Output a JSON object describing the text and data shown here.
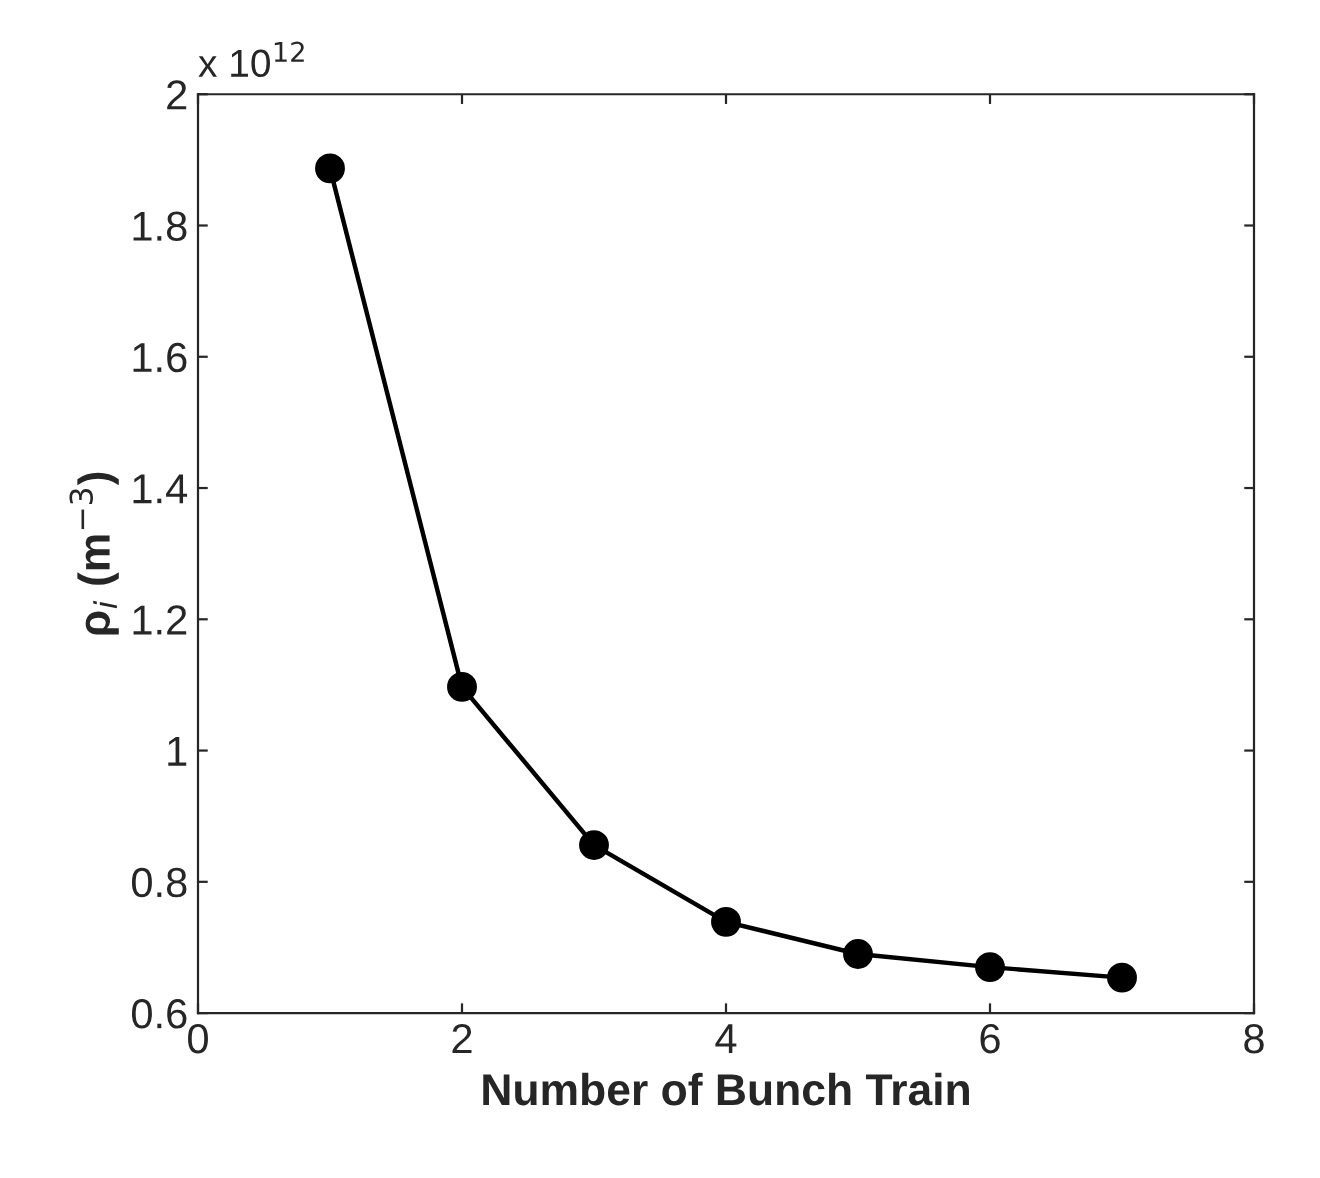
{
  "chart_data": {
    "type": "line",
    "xlabel": "Number of Bunch Train",
    "ylabel": "ρ$_{i}$ (m$^{−3}$)",
    "annotations": [
      "x 10$^{12}$"
    ],
    "x": [
      1,
      2,
      3,
      4,
      5,
      6,
      7
    ],
    "series": [
      {
        "color": "#000000",
        "values": [
          1.887,
          1.097,
          0.856,
          0.739,
          0.69,
          0.67,
          0.654
        ]
      }
    ],
    "xlim": [
      0,
      8
    ],
    "xticks": [
      0,
      2,
      4,
      6,
      8
    ],
    "ylim": [
      0.6,
      2
    ],
    "yticks": [
      0.6,
      0.8,
      1,
      1.2,
      1.4,
      1.6,
      1.8,
      2
    ],
    "marker": "circle",
    "line_style": "solid",
    "grid": false,
    "legend": false
  }
}
